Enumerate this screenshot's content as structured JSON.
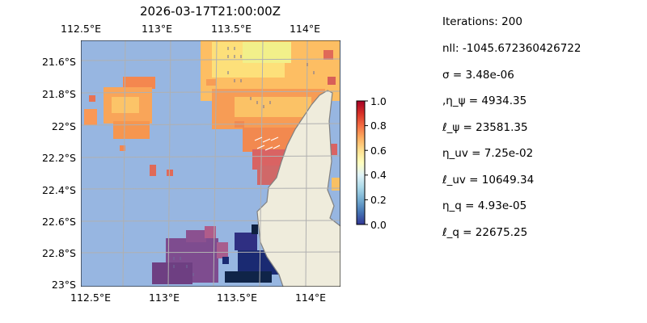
{
  "map": {
    "title": "2026-03-17T21:00:00Z",
    "lon_ticks": [
      "112.5°E",
      "113°E",
      "113.5°E",
      "114°E"
    ],
    "lat_ticks": [
      "21.6°S",
      "21.8°S",
      "22°S",
      "22.2°S",
      "22.4°S",
      "22.6°S",
      "22.8°S",
      "23°S"
    ],
    "lon_range": [
      112.5,
      114.2
    ],
    "lat_range": [
      -23.0,
      -21.5
    ],
    "ocean_color": "#97b6e1",
    "land_color": "#efecdc",
    "coast_color": "#808080",
    "grid": true
  },
  "colorbar": {
    "ticks": [
      "0.0",
      "0.2",
      "0.4",
      "0.6",
      "0.8",
      "1.0"
    ],
    "colormap": "RdYlBu_r"
  },
  "stats": [
    "Iterations: 200",
    "nll: -1045.672360426722",
    "σ = 3.48e-06",
    ",η_ψ = 4934.35",
    "ℓ_ψ = 23581.35",
    "η_uv = 7.25e-02",
    "ℓ_uv = 10649.34",
    "η_q = 4.93e-05",
    "ℓ_q = 22675.25"
  ]
}
